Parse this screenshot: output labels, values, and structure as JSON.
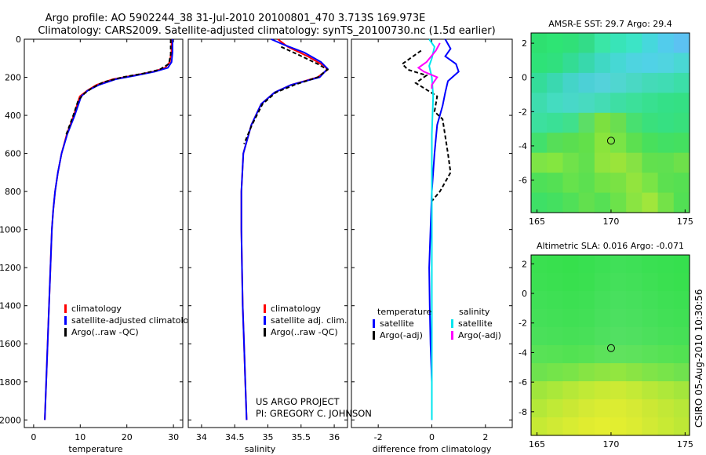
{
  "header": {
    "line1": "Argo profile: AO 5902244_38 31-Jul-2010 20100801_470 3.713S 169.973E",
    "line2": "Climatology: CARS2009. Satellite-adjusted climatology: synTS_20100730.nc (1.5d earlier)"
  },
  "colors": {
    "climatology": "#ff0000",
    "satellite": "#0000ff",
    "argo": "#000000",
    "satellite_sal": "#00e5ee",
    "argo_sal": "#ff00ff"
  },
  "chart_data": [
    {
      "id": "temperature",
      "type": "line",
      "title": "",
      "xlabel": "temperature",
      "ylabel": "",
      "xlim": [
        -2,
        32
      ],
      "ylim": [
        2040,
        0
      ],
      "x_ticks": [
        0,
        10,
        20,
        30
      ],
      "y_ticks": [
        0,
        200,
        400,
        600,
        800,
        1000,
        1200,
        1400,
        1600,
        1800,
        2000
      ],
      "legend": [
        "climatology",
        "satellite-adjusted climatology",
        "Argo(..raw -QC)"
      ],
      "series": [
        {
          "name": "climatology",
          "color": "#ff0000",
          "dash": "",
          "points": [
            [
              29.6,
              0
            ],
            [
              29.6,
              60
            ],
            [
              29.2,
              120
            ],
            [
              28.2,
              150
            ],
            [
              25.6,
              170
            ],
            [
              21.5,
              190
            ],
            [
              17.0,
              210
            ],
            [
              13.5,
              240
            ],
            [
              11.5,
              270
            ],
            [
              9.9,
              300
            ],
            [
              8.6,
              400
            ],
            [
              7.1,
              500
            ],
            [
              6.0,
              600
            ],
            [
              5.2,
              700
            ],
            [
              4.6,
              800
            ],
            [
              4.2,
              900
            ],
            [
              3.9,
              1000
            ],
            [
              3.6,
              1200
            ],
            [
              3.3,
              1400
            ],
            [
              3.0,
              1600
            ],
            [
              2.7,
              1800
            ],
            [
              2.4,
              2000
            ]
          ]
        },
        {
          "name": "satellite-adjusted climatology",
          "color": "#0000ff",
          "dash": "",
          "points": [
            [
              29.8,
              0
            ],
            [
              29.8,
              70
            ],
            [
              29.6,
              120
            ],
            [
              28.8,
              150
            ],
            [
              26.0,
              170
            ],
            [
              22.0,
              190
            ],
            [
              17.6,
              210
            ],
            [
              14.0,
              240
            ],
            [
              11.6,
              270
            ],
            [
              10.2,
              300
            ],
            [
              8.8,
              400
            ],
            [
              7.2,
              500
            ],
            [
              6.0,
              600
            ],
            [
              5.2,
              700
            ],
            [
              4.6,
              800
            ],
            [
              4.2,
              900
            ],
            [
              3.9,
              1000
            ],
            [
              3.6,
              1200
            ],
            [
              3.3,
              1400
            ],
            [
              3.0,
              1600
            ],
            [
              2.7,
              1800
            ],
            [
              2.4,
              2000
            ]
          ]
        },
        {
          "name": "Argo(..raw -QC)",
          "color": "#000000",
          "dash": "5,3",
          "points": [
            [
              29.4,
              0
            ],
            [
              29.4,
              80
            ],
            [
              29.0,
              130
            ],
            [
              27.0,
              160
            ],
            [
              23.5,
              180
            ],
            [
              19.0,
              200
            ],
            [
              15.0,
              225
            ],
            [
              12.6,
              255
            ],
            [
              10.9,
              285
            ],
            [
              9.6,
              320
            ],
            [
              8.5,
              400
            ],
            [
              7.0,
              500
            ]
          ]
        }
      ]
    },
    {
      "id": "salinity",
      "type": "line",
      "title": "",
      "xlabel": "salinity",
      "ylabel": "",
      "xlim": [
        33.8,
        36.2
      ],
      "ylim": [
        2040,
        0
      ],
      "x_ticks": [
        34,
        34.5,
        35,
        35.5,
        36
      ],
      "y_ticks": [
        0,
        200,
        400,
        600,
        800,
        1000,
        1200,
        1400,
        1600,
        1800,
        2000
      ],
      "legend": [
        "climatology",
        "satellite adj. clim.",
        "Argo(..raw -QC)"
      ],
      "series": [
        {
          "name": "climatology",
          "color": "#ff0000",
          "dash": "",
          "points": [
            [
              35.15,
              0
            ],
            [
              35.3,
              40
            ],
            [
              35.6,
              90
            ],
            [
              35.85,
              140
            ],
            [
              35.9,
              160
            ],
            [
              35.75,
              200
            ],
            [
              35.35,
              240
            ],
            [
              35.1,
              280
            ],
            [
              34.9,
              340
            ],
            [
              34.75,
              450
            ],
            [
              34.63,
              600
            ],
            [
              34.6,
              800
            ],
            [
              34.6,
              1000
            ],
            [
              34.61,
              1200
            ],
            [
              34.62,
              1400
            ],
            [
              34.64,
              1600
            ],
            [
              34.66,
              1800
            ],
            [
              34.68,
              2000
            ]
          ]
        },
        {
          "name": "satellite adj. clim.",
          "color": "#0000ff",
          "dash": "",
          "points": [
            [
              35.05,
              0
            ],
            [
              35.25,
              30
            ],
            [
              35.55,
              70
            ],
            [
              35.8,
              120
            ],
            [
              35.9,
              155
            ],
            [
              35.78,
              200
            ],
            [
              35.35,
              240
            ],
            [
              35.1,
              280
            ],
            [
              34.9,
              340
            ],
            [
              34.75,
              450
            ],
            [
              34.63,
              600
            ],
            [
              34.6,
              800
            ],
            [
              34.6,
              1000
            ],
            [
              34.61,
              1200
            ],
            [
              34.62,
              1400
            ],
            [
              34.64,
              1600
            ],
            [
              34.66,
              1800
            ],
            [
              34.68,
              2000
            ]
          ]
        },
        {
          "name": "Argo(..raw -QC)",
          "color": "#000000",
          "dash": "5,3",
          "points": [
            [
              35.2,
              40
            ],
            [
              35.45,
              80
            ],
            [
              35.75,
              130
            ],
            [
              35.9,
              160
            ],
            [
              35.75,
              200
            ],
            [
              35.4,
              240
            ],
            [
              35.12,
              280
            ],
            [
              34.92,
              340
            ],
            [
              34.76,
              450
            ],
            [
              34.64,
              550
            ]
          ]
        }
      ]
    },
    {
      "id": "difference",
      "type": "line",
      "title": "",
      "xlabel": "difference from climatology",
      "ylabel": "",
      "xlim": [
        -3,
        3
      ],
      "ylim": [
        2040,
        0
      ],
      "x_ticks": [
        -2,
        0,
        2
      ],
      "y_ticks": [
        0,
        200,
        400,
        600,
        800,
        1000,
        1200,
        1400,
        1600,
        1800,
        2000
      ],
      "legend_heads": [
        "temperature",
        "salinity"
      ],
      "legend_left": [
        "satellite",
        "Argo(-adj)"
      ],
      "legend_right": [
        "satellite",
        "Argo(-adj)"
      ],
      "series": [
        {
          "name": "temperature satellite",
          "color": "#0000ff",
          "dash": "",
          "points": [
            [
              0.5,
              0
            ],
            [
              0.7,
              50
            ],
            [
              0.5,
              90
            ],
            [
              0.9,
              130
            ],
            [
              1.0,
              170
            ],
            [
              0.6,
              220
            ],
            [
              0.5,
              280
            ],
            [
              0.4,
              350
            ],
            [
              0.2,
              450
            ],
            [
              0.1,
              600
            ],
            [
              0.0,
              800
            ],
            [
              -0.05,
              1000
            ],
            [
              -0.1,
              1200
            ],
            [
              -0.08,
              1400
            ],
            [
              -0.05,
              1600
            ],
            [
              0.0,
              1800
            ],
            [
              0.0,
              2000
            ]
          ]
        },
        {
          "name": "temperature Argo(-adj)",
          "color": "#000000",
          "dash": "5,3",
          "points": [
            [
              -0.4,
              60
            ],
            [
              -1.1,
              130
            ],
            [
              -0.9,
              160
            ],
            [
              -0.2,
              190
            ],
            [
              -0.6,
              230
            ],
            [
              0.2,
              300
            ],
            [
              0.1,
              380
            ],
            [
              0.4,
              420
            ],
            [
              0.6,
              600
            ],
            [
              0.7,
              700
            ],
            [
              0.3,
              800
            ],
            [
              0.0,
              850
            ]
          ]
        },
        {
          "name": "salinity satellite",
          "color": "#00e5ee",
          "dash": "",
          "points": [
            [
              -0.1,
              0
            ],
            [
              0.1,
              40
            ],
            [
              0.0,
              100
            ],
            [
              -0.1,
              140
            ],
            [
              0.0,
              200
            ],
            [
              0.05,
              300
            ],
            [
              0.0,
              500
            ],
            [
              0.0,
              800
            ],
            [
              0.0,
              2000
            ]
          ]
        },
        {
          "name": "salinity Argo(-adj)",
          "color": "#ff00ff",
          "dash": "",
          "points": [
            [
              0.3,
              20
            ],
            [
              0.15,
              60
            ],
            [
              -0.2,
              120
            ],
            [
              -0.5,
              150
            ],
            [
              -0.3,
              170
            ],
            [
              0.2,
              200
            ],
            [
              0.0,
              240
            ],
            [
              0.0,
              260
            ]
          ]
        }
      ]
    },
    {
      "id": "sst_map",
      "type": "heatmap",
      "title": "AMSR-E SST: 29.7 Argo: 29.4",
      "xlim": [
        164.6,
        175.3
      ],
      "ylim": [
        -7.9,
        2.6
      ],
      "x_ticks": [
        165,
        170,
        175
      ],
      "y_ticks": [
        2,
        0,
        -2,
        -4,
        -6
      ],
      "marker": {
        "lon": 170.0,
        "lat": -3.7
      },
      "grid": [
        [
          "#2ee070",
          "#2ee474",
          "#30e078",
          "#33dc88",
          "#3ae6a6",
          "#38e4b8",
          "#3ce4c6",
          "#46d8dc",
          "#52ccec",
          "#5cc2f2"
        ],
        [
          "#2ee278",
          "#30e07e",
          "#33dc94",
          "#38d8ac",
          "#40d8c4",
          "#46d8d4",
          "#4ed4e0",
          "#50d2e6",
          "#50d4e0",
          "#4ad8d4"
        ],
        [
          "#34dc9a",
          "#3ad8b0",
          "#44d4c8",
          "#4cd0d6",
          "#54d2da",
          "#50d6d0",
          "#4ad8c4",
          "#44dab8",
          "#40dcb4",
          "#3cdea8"
        ],
        [
          "#3edcae",
          "#44dcc0",
          "#48d8c8",
          "#48dac0",
          "#44dcb4",
          "#3edea4",
          "#3ce09a",
          "#38e090",
          "#34e088",
          "#34e084"
        ],
        [
          "#3ce09e",
          "#3ae096",
          "#40e08c",
          "#5cde66",
          "#7ce040",
          "#6ade50",
          "#48e070",
          "#3ae07c",
          "#36e082",
          "#38e07c"
        ],
        [
          "#42e06c",
          "#56de58",
          "#5ade50",
          "#62e04a",
          "#8ae43c",
          "#7ae446",
          "#5ce050",
          "#48e05c",
          "#42e064",
          "#44e060"
        ],
        [
          "#7ee446",
          "#84e640",
          "#70e24a",
          "#62e04e",
          "#90e43e",
          "#9ae43a",
          "#86e244",
          "#62e04e",
          "#60e050",
          "#6ee04a"
        ],
        [
          "#4ee058",
          "#54e054",
          "#66e24c",
          "#5ce050",
          "#72e246",
          "#7ae244",
          "#92e43e",
          "#7ae446",
          "#5ce050",
          "#56e052"
        ],
        [
          "#3ee066",
          "#44e060",
          "#50e058",
          "#62e04e",
          "#56e054",
          "#6ce24a",
          "#8ae442",
          "#a0e63c",
          "#74e248",
          "#52e054"
        ]
      ]
    },
    {
      "id": "sla_map",
      "type": "heatmap",
      "title": "Altimetric SLA: 0.016 Argo: -0.071",
      "xlim": [
        164.6,
        175.3
      ],
      "ylim": [
        -9.6,
        2.6
      ],
      "x_ticks": [
        165,
        170,
        175
      ],
      "y_ticks": [
        2,
        0,
        -2,
        -4,
        -6,
        -8
      ],
      "marker": {
        "lon": 170.0,
        "lat": -3.7
      },
      "grid": [
        [
          "#3ae050",
          "#38e04e",
          "#36e04c",
          "#38e050",
          "#3ce054",
          "#40e058",
          "#3ee056",
          "#3ae052",
          "#38e050",
          "#36e04e"
        ],
        [
          "#3ce052",
          "#3ae050",
          "#38e04e",
          "#3ae050",
          "#40e056",
          "#44e05a",
          "#42e058",
          "#3ee054",
          "#3ae050",
          "#38e04e"
        ],
        [
          "#40e056",
          "#3ee054",
          "#3ce052",
          "#3ee054",
          "#44e05a",
          "#48e05e",
          "#46e05c",
          "#42e058",
          "#3ee054",
          "#3ce052"
        ],
        [
          "#44e058",
          "#42e056",
          "#40e054",
          "#42e056",
          "#48e05c",
          "#4ce060",
          "#4ae05e",
          "#46e05a",
          "#42e056",
          "#40e054"
        ],
        [
          "#4ae05a",
          "#48e058",
          "#46e056",
          "#48e058",
          "#4ee05e",
          "#52e062",
          "#50e060",
          "#4ce05c",
          "#48e058",
          "#46e056"
        ],
        [
          "#58e256",
          "#56e254",
          "#52e252",
          "#56e254",
          "#5ce25a",
          "#60e25e",
          "#5ee25c",
          "#5ae258",
          "#56e254",
          "#52e252"
        ],
        [
          "#6ee24e",
          "#74e44a",
          "#7ae448",
          "#86e444",
          "#8ee442",
          "#92e640",
          "#8ae444",
          "#80e448",
          "#78e44a",
          "#70e24e"
        ],
        [
          "#a0e63c",
          "#aae83a",
          "#b6e838",
          "#c0ea36",
          "#c8ea34",
          "#ccea34",
          "#c4ea36",
          "#b8e838",
          "#aee83a",
          "#a4e63c"
        ],
        [
          "#b4e838",
          "#c0ea36",
          "#cae834",
          "#d4ea34",
          "#daec32",
          "#dcec32",
          "#d6ea34",
          "#cce834",
          "#c2e836",
          "#b8e838"
        ],
        [
          "#c6ea34",
          "#d0ea34",
          "#d8ec32",
          "#e0ec30",
          "#e4ee30",
          "#e2ee30",
          "#dcec32",
          "#d2ea34",
          "#c8ea34",
          "#bee836"
        ]
      ]
    }
  ],
  "credit": {
    "line1": "US ARGO PROJECT",
    "line2": "PI: GREGORY C. JOHNSON"
  },
  "footer": {
    "stamp": "CSIRO 05-Aug-2010 10:30:56"
  }
}
